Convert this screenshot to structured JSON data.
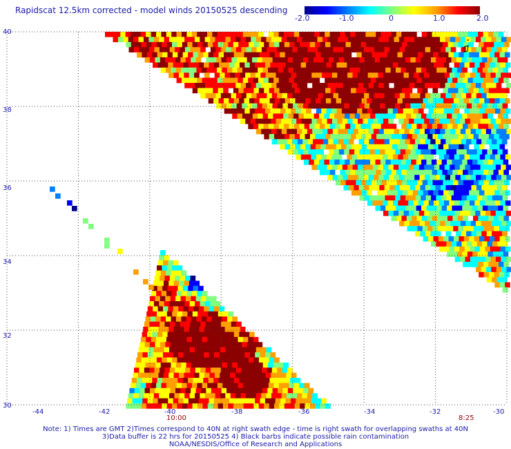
{
  "title": "Rapidscat 12.5km corrected - model winds 20150525 descending",
  "colorbar": {
    "labels": [
      "-2.0",
      "-1.0",
      "0",
      "1.0",
      "2.0"
    ],
    "min": -2.0,
    "max": 2.0,
    "colors": [
      "#00008b",
      "#0000ff",
      "#0080ff",
      "#00ffff",
      "#80ff80",
      "#ffff00",
      "#ffa000",
      "#ff0000",
      "#8b0000"
    ]
  },
  "map": {
    "lon_range": [
      -44,
      -30
    ],
    "lat_range": [
      30,
      40
    ],
    "grid": "dotted",
    "lon_labels": [
      "-44",
      "-42",
      "-40",
      "-38",
      "-36",
      "-34",
      "-32",
      "-30"
    ],
    "lat_labels": [
      "40",
      "38",
      "36",
      "34",
      "32",
      "30"
    ]
  },
  "swath_times": [
    {
      "time": "10:00",
      "lon": -40
    },
    {
      "time": "8:25",
      "lon": -31.5
    }
  ],
  "notes": [
    "Note: 1) Times are GMT 2)Times correspond to 40N at right swath edge - time is right swath for overlapping swaths at 40N",
    "3)Data buffer is 22 hrs for 20150525 4) Black barbs indicate possible rain contamination",
    "NOAA/NESDIS/Office of Research and Applications"
  ]
}
